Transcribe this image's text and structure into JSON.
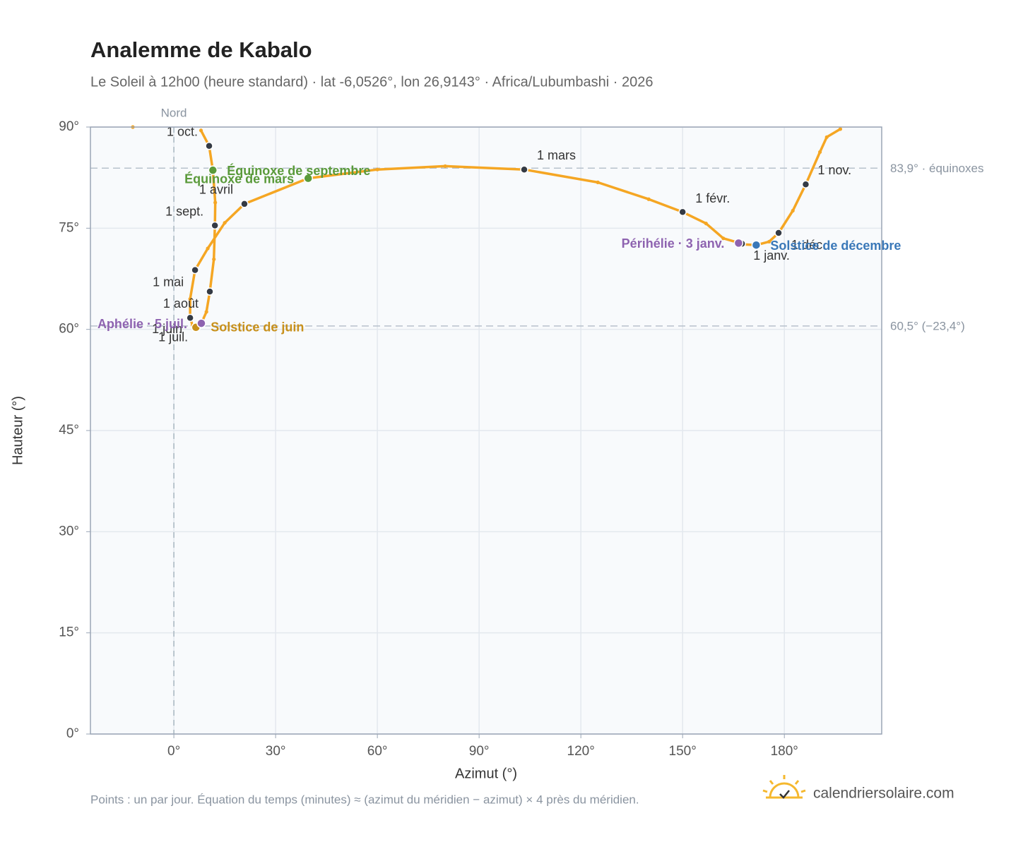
{
  "chart_data": {
    "type": "analemma",
    "title": "Analemme de Kabalo",
    "subtitle": "Le Soleil à 12h00 (heure standard) · lat -6,0526°, lon 26,9143° · Africa/Lubumbashi · 2026",
    "x_label": "Azimut (°)",
    "y_label": "Hauteur (°)",
    "footnote": "Points : un par jour. Équation du temps (minutes) ≈ (azimut du méridien − azimut) × 4 près du méridien.",
    "brand": "calendriersolaire.com",
    "xlim": [
      -24.6,
      208.7
    ],
    "ylim": [
      0,
      90
    ],
    "xticks": [
      {
        "value": 0,
        "label": "0°"
      },
      {
        "value": 30,
        "label": "30°"
      },
      {
        "value": 60,
        "label": "60°"
      },
      {
        "value": 90,
        "label": "90°"
      },
      {
        "value": 120,
        "label": "120°"
      },
      {
        "value": 150,
        "label": "150°"
      },
      {
        "value": 180,
        "label": "180°"
      }
    ],
    "yticks": [
      {
        "value": 0,
        "label": "0°"
      },
      {
        "value": 15,
        "label": "15°"
      },
      {
        "value": 30,
        "label": "30°"
      },
      {
        "value": 45,
        "label": "45°"
      },
      {
        "value": 60,
        "label": "60°"
      },
      {
        "value": 75,
        "label": "75°"
      },
      {
        "value": 90,
        "label": "90°"
      }
    ],
    "grid": true,
    "meridian": {
      "value": 0,
      "label": "Nord"
    },
    "reference_lines": [
      {
        "value": 83.9,
        "label": "83,9° · équinoxes"
      },
      {
        "value": 60.5,
        "label": "60,5° (−23,4°)"
      }
    ],
    "series": [
      {
        "color": "#f5a623",
        "x": [
          167.5,
          162,
          156.9,
          150.0,
          140,
          125,
          103.3,
          80,
          60,
          39.6,
          20.8,
          15,
          10,
          6.25,
          4.8,
          4.8,
          5.5,
          6.5,
          7.1,
          8.1,
          9.6,
          10.6,
          11.8,
          12.1,
          12.2,
          11.5,
          10.4,
          8,
          null,
          -12.1,
          null,
          196.5,
          192.5,
          190.5,
          186.3,
          182.5,
          178.3,
          175.5,
          171.7,
          168
        ],
        "y": [
          72.7,
          73.5,
          75.7,
          77.4,
          79.3,
          81.8,
          83.7,
          84.2,
          83.7,
          82.4,
          78.6,
          75.8,
          72,
          68.8,
          64.5,
          61.7,
          60.6,
          60.3,
          60.5,
          60.9,
          62.6,
          65.6,
          70.4,
          75.4,
          78.8,
          83.6,
          87.2,
          89.5,
          null,
          90,
          null,
          89.7,
          88.5,
          86.3,
          81.5,
          77.6,
          74.3,
          73,
          72.5,
          72.6
        ]
      }
    ],
    "months": [
      {
        "label": "1 janv.",
        "x": 167.5,
        "y": 72.7
      },
      {
        "label": "1 févr.",
        "x": 150.0,
        "y": 77.4
      },
      {
        "label": "1 mars",
        "x": 103.3,
        "y": 83.7
      },
      {
        "label": "1 avril",
        "x": 20.8,
        "y": 78.6
      },
      {
        "label": "1 mai",
        "x": 6.25,
        "y": 68.8
      },
      {
        "label": "1 juin",
        "x": 4.8,
        "y": 61.7
      },
      {
        "label": "1 juil.",
        "x": 7.1,
        "y": 60.5
      },
      {
        "label": "1 août",
        "x": 10.6,
        "y": 65.6
      },
      {
        "label": "1 sept.",
        "x": 12.1,
        "y": 75.4
      },
      {
        "label": "1 oct.",
        "x": 10.4,
        "y": 87.2
      },
      {
        "label": "1 nov.",
        "x": 186.3,
        "y": 81.5
      },
      {
        "label": "1 déc.",
        "x": 178.3,
        "y": 74.3
      }
    ],
    "events": [
      {
        "name": "Équinoxe de mars",
        "x": 39.6,
        "y": 82.4,
        "color": "#5a9a3a"
      },
      {
        "name": "Équinoxe de septembre",
        "x": 11.5,
        "y": 83.6,
        "color": "#5a9a3a"
      },
      {
        "name": "Solstice de juin",
        "x": 6.5,
        "y": 60.3,
        "color": "#c8901a"
      },
      {
        "name": "Aphélie · 5 juil.",
        "x": 8.1,
        "y": 60.9,
        "color": "#8e63b0"
      },
      {
        "name": "Périhélie · 3 janv.",
        "x": 166.5,
        "y": 72.8,
        "color": "#8e63b0"
      },
      {
        "name": "Solstice de décembre",
        "x": 171.7,
        "y": 72.5,
        "color": "#3a78b8"
      }
    ]
  }
}
